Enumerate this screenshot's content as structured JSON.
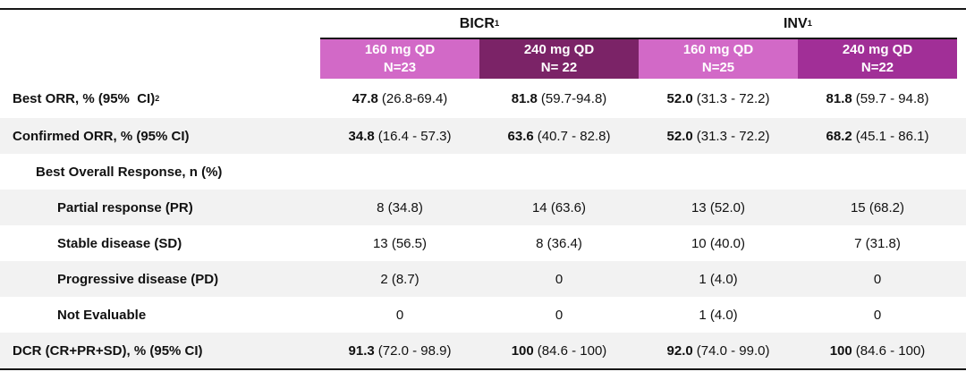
{
  "colors": {
    "pink_header": "#D269C7",
    "dark_purple_header": "#7B2367",
    "purple_header": "#A12F97",
    "stripe_gray": "#F2F2F2",
    "rule_black": "#161616"
  },
  "chart_data": {
    "type": "table",
    "column_groups": [
      {
        "label": "BICR",
        "sup": "1"
      },
      {
        "label": "INV",
        "sup": "1"
      }
    ],
    "columns": [
      {
        "dose": "160 mg QD",
        "n": "N=23",
        "color": "#D269C7"
      },
      {
        "dose": "240 mg QD",
        "n": "N= 22",
        "color": "#7B2367"
      },
      {
        "dose": "160 mg QD",
        "n": "N=25",
        "color": "#D269C7"
      },
      {
        "dose": "240 mg QD",
        "n": "N=22",
        "color": "#A12F97"
      }
    ],
    "rows": [
      {
        "label": "Best ORR, % (95%  CI)",
        "sup": "2",
        "cells": [
          {
            "v": "47.8",
            "ci": "(26.8-69.4)"
          },
          {
            "v": "81.8",
            "ci": "(59.7-94.8)"
          },
          {
            "v": "52.0",
            "ci": "(31.3 - 72.2)"
          },
          {
            "v": "81.8",
            "ci": "(59.7 - 94.8)"
          }
        ]
      },
      {
        "label": "Confirmed ORR, % (95% CI)",
        "cells": [
          {
            "v": "34.8",
            "ci": "(16.4 - 57.3)"
          },
          {
            "v": "63.6",
            "ci": "(40.7 - 82.8)"
          },
          {
            "v": "52.0",
            "ci": "(31.3 - 72.2)"
          },
          {
            "v": "68.2",
            "ci": "(45.1 - 86.1)"
          }
        ]
      },
      {
        "label": "Best Overall Response, n (%)",
        "cells": [
          {
            "v": ""
          },
          {
            "v": ""
          },
          {
            "v": ""
          },
          {
            "v": ""
          }
        ]
      },
      {
        "label": "Partial response (PR)",
        "cells": [
          {
            "v": "8 (34.8)"
          },
          {
            "v": "14 (63.6)"
          },
          {
            "v": "13 (52.0)"
          },
          {
            "v": "15 (68.2)"
          }
        ]
      },
      {
        "label": "Stable disease (SD)",
        "cells": [
          {
            "v": "13 (56.5)"
          },
          {
            "v": "8 (36.4)"
          },
          {
            "v": "10 (40.0)"
          },
          {
            "v": "7 (31.8)"
          }
        ]
      },
      {
        "label": "Progressive disease (PD)",
        "cells": [
          {
            "v": "2 (8.7)"
          },
          {
            "v": "0"
          },
          {
            "v": "1 (4.0)"
          },
          {
            "v": "0"
          }
        ]
      },
      {
        "label": "Not Evaluable",
        "cells": [
          {
            "v": "0"
          },
          {
            "v": "0"
          },
          {
            "v": "1 (4.0)"
          },
          {
            "v": "0"
          }
        ]
      },
      {
        "label": "DCR (CR+PR+SD), % (95% CI)",
        "cells": [
          {
            "v": "91.3",
            "ci": "(72.0 - 98.9)"
          },
          {
            "v": "100",
            "ci": "(84.6 - 100)"
          },
          {
            "v": "92.0",
            "ci": "(74.0 - 99.0)"
          },
          {
            "v": "100",
            "ci": "(84.6 - 100)"
          }
        ]
      }
    ]
  }
}
